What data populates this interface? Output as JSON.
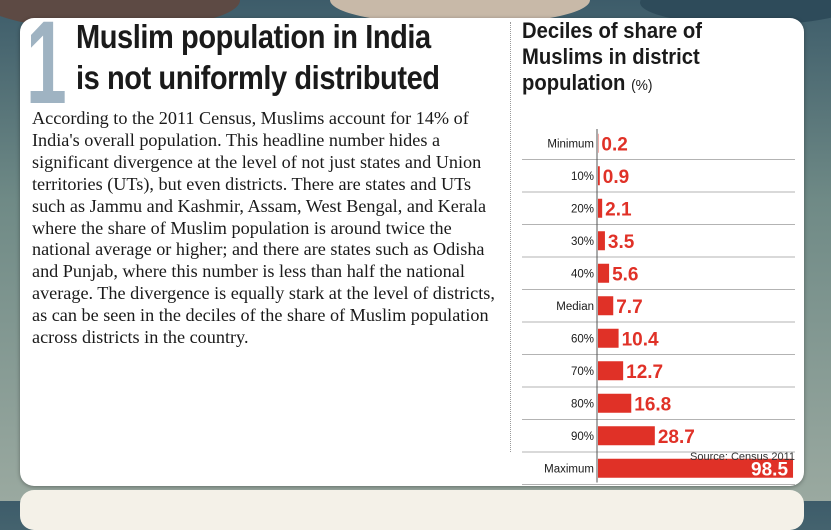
{
  "headline": {
    "number": "1",
    "line1": "Muslim population in India",
    "line2": "is not uniformly distributed"
  },
  "body": "According to the 2011 Census, Muslims account for 14% of India's overall population. This headline number hides a significant divergence at the level of not just states and Union territories (UTs), but even districts. There are states and UTs such as Jammu and Kashmir, Assam, West Bengal, and Kerala where the share of Muslim population is around twice the national average or higher; and there are states such as Odisha and Punjab, where this number is less than half the national average. The divergence is equally stark at the level of districts, as can be seen in the deciles of the share of Muslim population across districts in the country.",
  "chart_title": "Deciles of share of Muslims in district population",
  "chart_unit": "(%)",
  "source": "Source: Census 2011",
  "colors": {
    "bar": "#e03127",
    "label": "#e03127",
    "label_inside": "#ffffff"
  },
  "chart_data": {
    "type": "bar",
    "orientation": "horizontal",
    "title": "Deciles of share of Muslims in district population (%)",
    "categories": [
      "Minimum",
      "10%",
      "20%",
      "30%",
      "40%",
      "Median",
      "60%",
      "70%",
      "80%",
      "90%",
      "Maximum"
    ],
    "values": [
      0.2,
      0.9,
      2.1,
      3.5,
      5.6,
      7.7,
      10.4,
      12.7,
      16.8,
      28.7,
      98.5
    ],
    "value_labels": [
      "0.2",
      "0.9",
      "2.1",
      "3.5",
      "5.6",
      "7.7",
      "10.4",
      "12.7",
      "16.8",
      "28.7",
      "98.5"
    ],
    "xlim": [
      0,
      100
    ],
    "grid": true
  }
}
